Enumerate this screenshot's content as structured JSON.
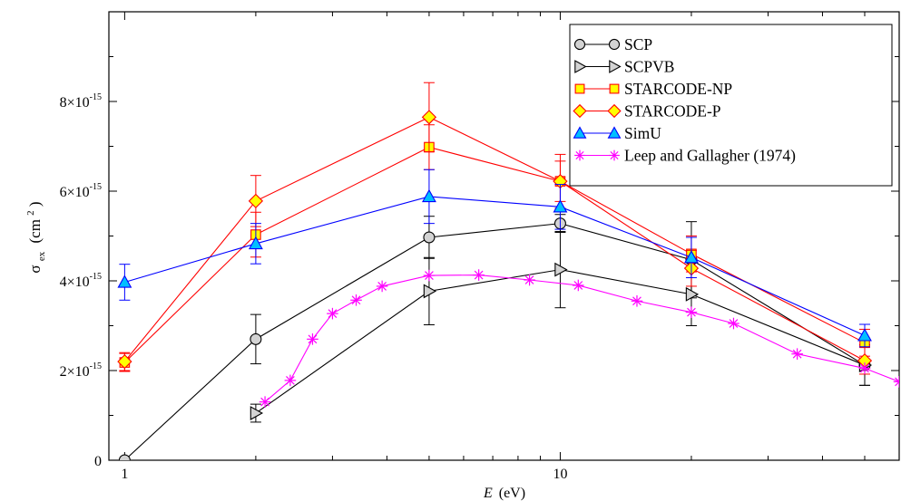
{
  "chart_data": {
    "type": "line",
    "x_scale": "log",
    "xlabel_symbol": "E",
    "xlabel_unit": "(eV)",
    "ylabel_symbol": "σ",
    "ylabel_sub": "ex",
    "ylabel_unit_open": "(cm",
    "ylabel_unit_sup": "2",
    "ylabel_unit_close": ")",
    "xlim": [
      0.92,
      60
    ],
    "ylim": [
      0,
      1e-14
    ],
    "x_ticks": [
      {
        "value": 1,
        "label": "1"
      },
      {
        "value": 10,
        "label": "10"
      }
    ],
    "y_ticks": [
      {
        "value": 0,
        "mant": "0",
        "exp": ""
      },
      {
        "value": 2e-15,
        "mant": "2×10",
        "exp": "-15"
      },
      {
        "value": 4e-15,
        "mant": "4×10",
        "exp": "-15"
      },
      {
        "value": 6e-15,
        "mant": "6×10",
        "exp": "-15"
      },
      {
        "value": 8e-15,
        "mant": "8×10",
        "exp": "-15"
      }
    ],
    "legend_position": "top-right",
    "series": [
      {
        "name": "SCP",
        "color": "#000000",
        "marker": "circle",
        "marker_fill": "#d3d3d3",
        "line": true,
        "x": [
          1,
          2,
          5,
          10,
          20,
          50
        ],
        "y": [
          0,
          2.7e-15,
          4.97e-15,
          5.28e-15,
          4.47e-15,
          2.12e-15
        ],
        "err": [
          0,
          5.5e-16,
          4.7e-16,
          2e-16,
          8.5e-16,
          4.5e-16
        ]
      },
      {
        "name": "SCPVB",
        "color": "#000000",
        "marker": "triangle-right",
        "marker_fill": "#d3d3d3",
        "line": true,
        "x": [
          2,
          5,
          10,
          20,
          50
        ],
        "y": [
          1.05e-15,
          3.77e-15,
          4.25e-15,
          3.7e-15,
          2.12e-15
        ],
        "err": [
          2e-16,
          7.5e-16,
          8.5e-16,
          7e-16,
          4.5e-16
        ]
      },
      {
        "name": "STARCODE-NP",
        "color": "#ff0000",
        "marker": "square",
        "marker_fill": "#ffff00",
        "line": true,
        "x": [
          1,
          2,
          5,
          10,
          20,
          50
        ],
        "y": [
          2.18e-15,
          5.03e-15,
          6.98e-15,
          6.22e-15,
          4.6e-15,
          2.62e-15
        ],
        "err": [
          2e-16,
          5e-16,
          5e-16,
          4.5e-16,
          4e-16,
          3e-16
        ]
      },
      {
        "name": "STARCODE-P",
        "color": "#ff0000",
        "marker": "diamond",
        "marker_fill": "#ffff00",
        "line": true,
        "x": [
          1,
          2,
          5,
          10,
          20,
          50
        ],
        "y": [
          2.2e-15,
          5.78e-15,
          7.65e-15,
          6.22e-15,
          4.28e-15,
          2.22e-15
        ],
        "err": [
          2e-16,
          5.7e-16,
          7.7e-16,
          6e-16,
          4e-16,
          3e-16
        ]
      },
      {
        "name": "SimU",
        "color": "#0000ff",
        "marker": "triangle-up",
        "marker_fill": "#00bfff",
        "line": true,
        "x": [
          1,
          2,
          5,
          10,
          20,
          50
        ],
        "y": [
          3.97e-15,
          4.83e-15,
          5.88e-15,
          5.65e-15,
          4.52e-15,
          2.78e-15
        ],
        "err": [
          4e-16,
          4.5e-16,
          6e-16,
          5e-16,
          4.5e-16,
          2.5e-16
        ]
      },
      {
        "name": "Leep and Gallagher (1974)",
        "color": "#ff00ff",
        "marker": "asterisk",
        "marker_fill": "#ff00ff",
        "line": true,
        "x": [
          2.1,
          2.4,
          2.7,
          3.0,
          3.4,
          3.9,
          5.0,
          6.5,
          8.5,
          11.0,
          15.0,
          20.0,
          25.0,
          35.0,
          50.0,
          60.0
        ],
        "y": [
          1.3e-15,
          1.78e-15,
          2.7e-15,
          3.27e-15,
          3.57e-15,
          3.88e-15,
          4.12e-15,
          4.13e-15,
          4.02e-15,
          3.9e-15,
          3.55e-15,
          3.3e-15,
          3.05e-15,
          2.37e-15,
          2.05e-15,
          1.75e-15
        ],
        "err": []
      }
    ]
  }
}
